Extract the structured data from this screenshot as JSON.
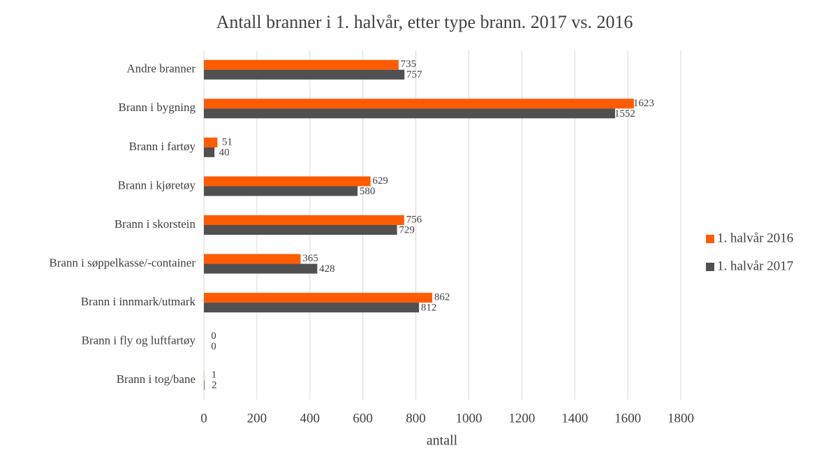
{
  "chart_data": {
    "type": "barh",
    "title": "Antall branner i 1. halvår, etter type brann. 2017 vs. 2016",
    "x_label": "antall",
    "categories": [
      "Andre branner",
      "Brann i bygning",
      "Brann i fartøy",
      "Brann i kjøretøy",
      "Brann i skorstein",
      "Brann i søppelkasse/-container",
      "Brann i innmark/utmark",
      "Brann i fly og luftfartøy",
      "Brann i tog/bane"
    ],
    "series": [
      {
        "name": "1. halvår 2016",
        "color": "#ff5b00",
        "values": [
          735,
          1623,
          51,
          629,
          756,
          365,
          862,
          0,
          1
        ]
      },
      {
        "name": "1. halvår 2017",
        "color": "#505050",
        "values": [
          757,
          1552,
          40,
          580,
          729,
          428,
          812,
          0,
          2
        ]
      }
    ],
    "xlim": [
      0,
      1800
    ],
    "xticks": [
      0,
      200,
      400,
      600,
      800,
      1000,
      1200,
      1400,
      1600,
      1800
    ],
    "grid": true,
    "legend": "right"
  }
}
